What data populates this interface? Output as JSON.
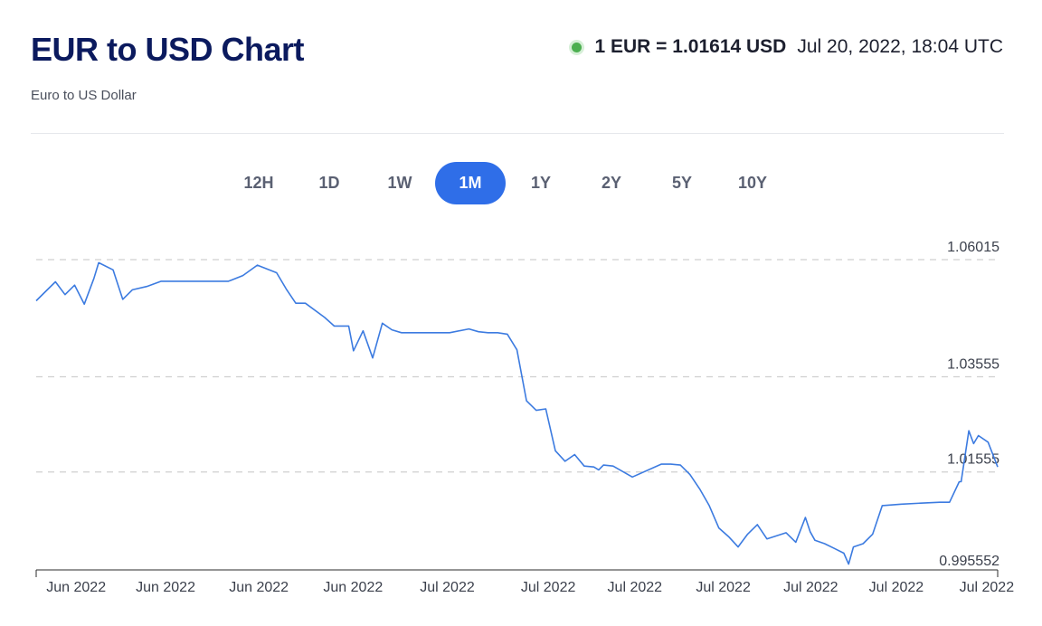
{
  "header": {
    "title": "EUR to USD Chart",
    "subtitle": "Euro to US Dollar",
    "rate_text": "1 EUR = 1.01614 USD",
    "timestamp": "Jul 20, 2022, 18:04 UTC",
    "live_icon": "green-dot-icon"
  },
  "tabs": [
    {
      "label": "12H",
      "active": false
    },
    {
      "label": "1D",
      "active": false
    },
    {
      "label": "1W",
      "active": false
    },
    {
      "label": "1M",
      "active": true
    },
    {
      "label": "1Y",
      "active": false
    },
    {
      "label": "2Y",
      "active": false
    },
    {
      "label": "5Y",
      "active": false
    },
    {
      "label": "10Y",
      "active": false
    }
  ],
  "colors": {
    "accent": "#2f6ee8",
    "line": "#3c7be0",
    "title": "#0b1a5e",
    "live": "#4caf50",
    "grid": "#cfcfcf"
  },
  "chart_data": {
    "type": "line",
    "title": "",
    "xlabel": "",
    "ylabel": "",
    "ylim": [
      0.995552,
      1.06015
    ],
    "y_ticks": [
      "1.06015",
      "1.03555",
      "1.01555",
      "0.995552"
    ],
    "gridlines_at": [
      1.06015,
      1.03555,
      1.01555
    ],
    "x_tick_labels": [
      "Jun 2022",
      "Jun 2022",
      "Jun 2022",
      "Jun 2022",
      "Jul 2022",
      "Jul 2022",
      "Jul 2022",
      "Jul 2022",
      "Jul 2022",
      "Jul 2022",
      "Jul 2022"
    ],
    "x_tick_positions": [
      0.019,
      0.112,
      0.209,
      0.307,
      0.405,
      0.51,
      0.6,
      0.692,
      0.783,
      0.872,
      0.966
    ],
    "series": [
      {
        "x": [
          0.0,
          0.01,
          0.02,
          0.03,
          0.04,
          0.05,
          0.06,
          0.065,
          0.08,
          0.09,
          0.1,
          0.115,
          0.13,
          0.16,
          0.2,
          0.215,
          0.23,
          0.25,
          0.26,
          0.27,
          0.28,
          0.3,
          0.31,
          0.325,
          0.33,
          0.34,
          0.35,
          0.36,
          0.37,
          0.38,
          0.39,
          0.4,
          0.43,
          0.45,
          0.46,
          0.47,
          0.48,
          0.49,
          0.5,
          0.51,
          0.52,
          0.53,
          0.54,
          0.55,
          0.56,
          0.57,
          0.58,
          0.585,
          0.59,
          0.6,
          0.62,
          0.65,
          0.66,
          0.67,
          0.68,
          0.69,
          0.7,
          0.71,
          0.72,
          0.73,
          0.74,
          0.75,
          0.76,
          0.78,
          0.79,
          0.8,
          0.805,
          0.81,
          0.82,
          0.83,
          0.84,
          0.845,
          0.85,
          0.86,
          0.87,
          0.88,
          0.9,
          0.92,
          0.94,
          0.95,
          0.96,
          0.962,
          0.97,
          0.975,
          0.98,
          0.99,
          1.0
        ],
        "y": [
          1.0515,
          1.0535,
          1.0555,
          1.0528,
          1.0548,
          1.0508,
          1.0562,
          1.0595,
          1.058,
          1.0518,
          1.0538,
          1.0545,
          1.0556,
          1.0556,
          1.0556,
          1.0568,
          1.059,
          1.0574,
          1.054,
          1.051,
          1.051,
          1.048,
          1.0462,
          1.0462,
          1.041,
          1.0452,
          1.0395,
          1.0468,
          1.0454,
          1.0448,
          1.0448,
          1.0448,
          1.0448,
          1.0456,
          1.045,
          1.0448,
          1.0448,
          1.0445,
          1.0412,
          1.0305,
          1.0285,
          1.0288,
          1.02,
          1.0178,
          1.0192,
          1.0168,
          1.0166,
          1.016,
          1.017,
          1.0168,
          1.0145,
          1.0172,
          1.0172,
          1.017,
          1.015,
          1.012,
          1.0085,
          1.0038,
          1.002,
          0.9998,
          1.0025,
          1.0045,
          1.0015,
          1.0028,
          1.0008,
          1.006,
          1.003,
          1.0012,
          1.0005,
          0.9995,
          0.9985,
          0.9962,
          0.9998,
          1.0005,
          1.0025,
          1.0085,
          1.0088,
          1.009,
          1.0092,
          1.0092,
          1.0135,
          1.0135,
          1.0242,
          1.0215,
          1.0232,
          1.0218,
          1.0166
        ]
      }
    ]
  }
}
